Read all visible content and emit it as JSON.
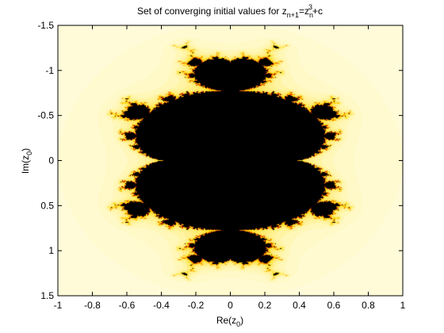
{
  "chart_data": {
    "type": "heatmap",
    "title": {
      "main": "Set of converging initial values for z",
      "sub1": "n+1",
      "eq": "=z",
      "sub2": "n",
      "sup": "3",
      "tail": "+c"
    },
    "xlabel": {
      "main": "Re(z",
      "sub": "0",
      "close": ")"
    },
    "ylabel": {
      "main": "Im(z",
      "sub": "0",
      "close": ")"
    },
    "xlim": [
      -1,
      1
    ],
    "ylim": [
      -1.5,
      1.5
    ],
    "y_reversed": true,
    "x_ticks": [
      -1,
      -0.8,
      -0.6,
      -0.4,
      -0.2,
      0,
      0.2,
      0.4,
      0.6,
      0.8,
      1
    ],
    "x_tick_labels": [
      "-1",
      "-0.8",
      "-0.6",
      "-0.4",
      "-0.2",
      "0",
      "0.2",
      "0.4",
      "0.6",
      "0.8",
      "1"
    ],
    "y_ticks": [
      -1.5,
      -1,
      -0.5,
      0,
      0.5,
      1,
      1.5
    ],
    "y_tick_labels": [
      "-1.5",
      "-1",
      "-0.5",
      "0",
      "0.5",
      "1",
      "1.5"
    ],
    "grid": false,
    "colormap": "hot",
    "colors": {
      "set": "#000000",
      "edge": "#e01000",
      "glow": "#ffd800",
      "halo": "#fff9c4",
      "outer": "#fffde6",
      "background": "#ffffff",
      "axes": "#000000"
    }
  }
}
